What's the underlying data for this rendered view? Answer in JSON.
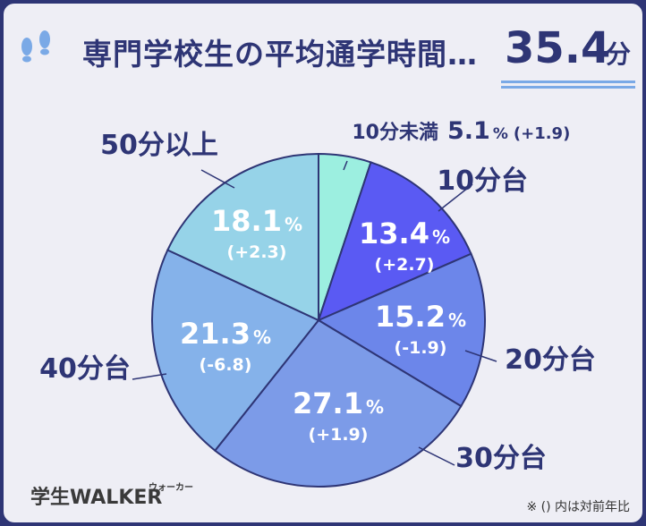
{
  "title": "専門学校生の平均通学時間…",
  "average": {
    "value": "35.4",
    "unit": "分"
  },
  "footnote": "※ () 内は対前年比",
  "logo": {
    "text": "学生WALKER",
    "kana": "ウォーカー"
  },
  "colors": {
    "navy": "#2e3575",
    "background": "#eeeef5"
  },
  "chart_data": {
    "type": "pie",
    "slices": [
      {
        "label": "10分未満",
        "value": 5.1,
        "pct": "5.1",
        "change": "(+1.9)",
        "color": "#9cefe0"
      },
      {
        "label": "10分台",
        "value": 13.4,
        "pct": "13.4",
        "change": "(+2.7)",
        "color": "#5a5af3"
      },
      {
        "label": "20分台",
        "value": 15.2,
        "pct": "15.2",
        "change": "(-1.9)",
        "color": "#6c86ea"
      },
      {
        "label": "30分台",
        "value": 27.1,
        "pct": "27.1",
        "change": "(+1.9)",
        "color": "#7c9be8"
      },
      {
        "label": "40分台",
        "value": 21.3,
        "pct": "21.3",
        "change": "(-6.8)",
        "color": "#85b2ea"
      },
      {
        "label": "50分以上",
        "value": 18.1,
        "pct": "18.1",
        "change": "(+2.3)",
        "color": "#96d3e8"
      }
    ]
  }
}
